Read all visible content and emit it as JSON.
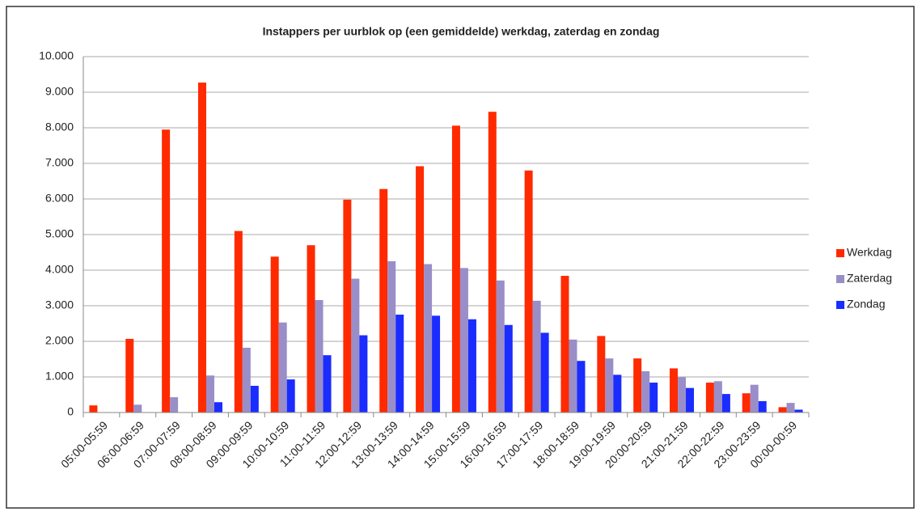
{
  "chart_data": {
    "type": "bar",
    "title": "Instappers per uurblok op (een gemiddelde) werkdag, zaterdag en zondag",
    "categories": [
      "05:00-05:59",
      "06:00-06:59",
      "07:00-07:59",
      "08:00-08:59",
      "09:00-09:59",
      "10:00-10:59",
      "11:00-11:59",
      "12:00-12:59",
      "13:00-13:59",
      "14:00-14:59",
      "15:00-15:59",
      "16:00-16:59",
      "17:00-17:59",
      "18:00-18:59",
      "19:00-19:59",
      "20:00-20:59",
      "21:00-21:59",
      "22:00-22:59",
      "23:00-23:59",
      "00:00-00:59"
    ],
    "series": [
      {
        "name": "Werkdag",
        "color": "#ff2a00",
        "values": [
          200,
          2070,
          7950,
          9270,
          5100,
          4380,
          4700,
          5980,
          6280,
          6920,
          8060,
          8450,
          6800,
          3840,
          2150,
          1520,
          1240,
          840,
          540,
          150
        ]
      },
      {
        "name": "Zaterdag",
        "color": "#9a8ec8",
        "values": [
          0,
          220,
          430,
          1040,
          1820,
          2530,
          3160,
          3760,
          4250,
          4170,
          4060,
          3710,
          3140,
          2050,
          1520,
          1160,
          990,
          880,
          780,
          270
        ]
      },
      {
        "name": "Zondag",
        "color": "#1a2cff",
        "values": [
          0,
          0,
          0,
          290,
          750,
          930,
          1610,
          2170,
          2750,
          2720,
          2620,
          2460,
          2240,
          1450,
          1060,
          840,
          690,
          520,
          320,
          80
        ]
      }
    ],
    "ylim": [
      0,
      10000
    ],
    "yticks": [
      0,
      {
        "value": 1000,
        "label": "1.000"
      },
      {
        "value": 2000,
        "label": "2.000"
      },
      {
        "value": 3000,
        "label": "3.000"
      },
      {
        "value": 4000,
        "label": "4.000"
      },
      {
        "value": 5000,
        "label": "5.000"
      },
      {
        "value": 6000,
        "label": "6.000"
      },
      {
        "value": 7000,
        "label": "7.000"
      },
      {
        "value": 8000,
        "label": "8.000"
      },
      {
        "value": 9000,
        "label": "9.000"
      },
      {
        "value": 10000,
        "label": "10.000"
      }
    ],
    "grid": true,
    "legend": "right"
  }
}
